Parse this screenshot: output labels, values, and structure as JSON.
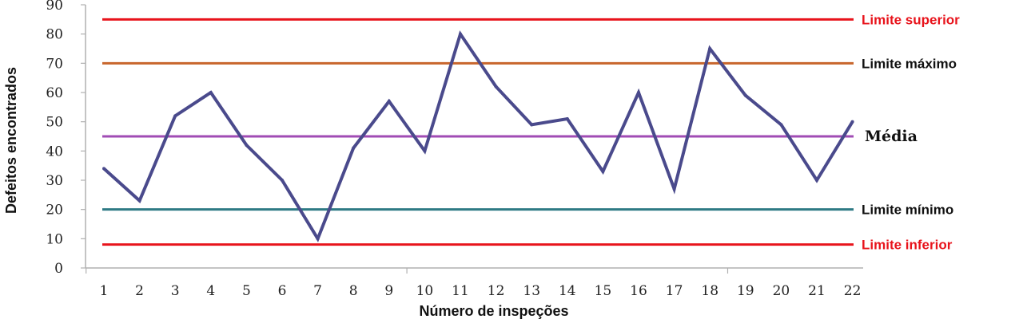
{
  "chart_data": {
    "type": "line",
    "title": "",
    "xlabel": "Número de inspeções",
    "ylabel": "Defeitos encontrados",
    "ylim": [
      0,
      90
    ],
    "y_ticks": [
      "0",
      "10",
      "20",
      "30",
      "40",
      "50",
      "60",
      "70",
      "80",
      "90"
    ],
    "x": [
      "1",
      "2",
      "3",
      "4",
      "5",
      "6",
      "7",
      "8",
      "9",
      "10",
      "11",
      "12",
      "13",
      "14",
      "15",
      "16",
      "17",
      "18",
      "19",
      "20",
      "21",
      "22"
    ],
    "series": [
      {
        "values": [
          34,
          23,
          52,
          60,
          42,
          30,
          10,
          41,
          57,
          40,
          80,
          62,
          49,
          51,
          33,
          60,
          27,
          75,
          59,
          49,
          30,
          50
        ],
        "color": "#4a4a8c"
      }
    ],
    "reference_lines": [
      {
        "label": "Limite superior",
        "value": 85,
        "color": "#e8141c",
        "label_style": "sans"
      },
      {
        "label": "Limite máximo",
        "value": 70,
        "color": "#c8662c",
        "label_style": "sans"
      },
      {
        "label": "Média",
        "value": 45,
        "color": "#a04cb4",
        "label_style": "serif"
      },
      {
        "label": "Limite mínimo",
        "value": 20,
        "color": "#2e7a84",
        "label_style": "sans"
      },
      {
        "label": "Limite inferior",
        "value": 8,
        "color": "#e8141c",
        "label_style": "sans"
      }
    ],
    "grid": false,
    "legend": "none"
  }
}
